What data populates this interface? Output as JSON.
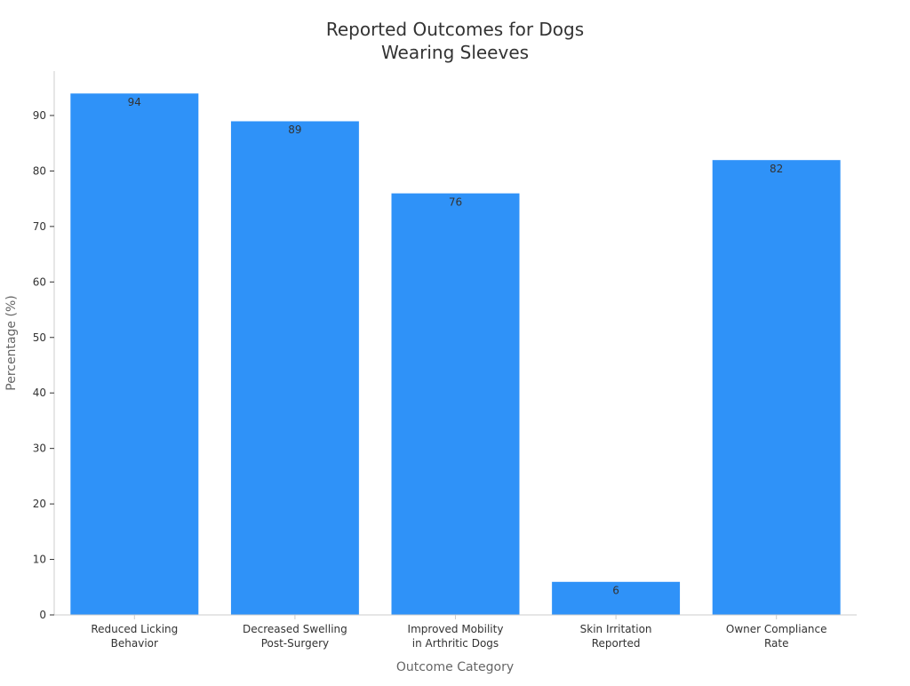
{
  "chart_data": {
    "type": "bar",
    "title": "Reported Outcomes for Dogs\nWearing Sleeves",
    "title_lines": [
      "Reported Outcomes for Dogs",
      "Wearing Sleeves"
    ],
    "xlabel": "Outcome Category",
    "ylabel": "Percentage (%)",
    "categories": [
      "Reduced Licking Behavior",
      "Decreased Swelling Post-Surgery",
      "Improved Mobility in Arthritic Dogs",
      "Skin Irritation Reported",
      "Owner Compliance Rate"
    ],
    "category_lines": [
      [
        "Reduced Licking",
        "Behavior"
      ],
      [
        "Decreased Swelling",
        "Post-Surgery"
      ],
      [
        "Improved Mobility",
        "in Arthritic Dogs"
      ],
      [
        "Skin Irritation",
        "Reported"
      ],
      [
        "Owner Compliance",
        "Rate"
      ]
    ],
    "values": [
      94,
      89,
      76,
      6,
      82
    ],
    "ylim": [
      0,
      98
    ],
    "yticks": [
      0,
      10,
      20,
      30,
      40,
      50,
      60,
      70,
      80,
      90
    ],
    "grid": false,
    "legend": "none",
    "colors": {
      "bar": "#2f92f8",
      "text": "#333333",
      "axis_label": "#666666",
      "axis_line": "#cccccc",
      "tick": "#333333"
    }
  }
}
